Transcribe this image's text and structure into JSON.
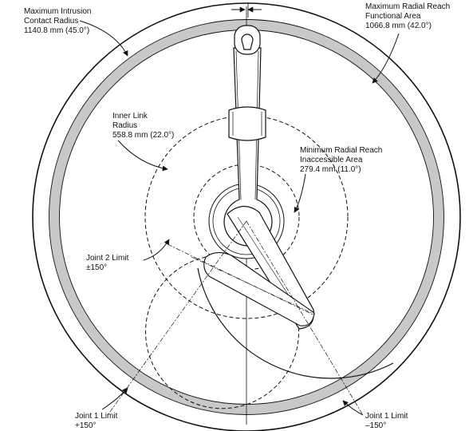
{
  "labels": {
    "max_intrusion": [
      "Maximum Intrusion",
      "Contact Radius",
      "1140.8 mm (45.0°)"
    ],
    "max_radial_reach": [
      "Maximum Radial Reach",
      "Functional Area",
      "1066.8 mm (42.0°)"
    ],
    "inner_link": [
      "Inner Link",
      "Radius",
      "558.8 mm (22.0°)"
    ],
    "min_radial_reach": [
      "Minimum Radial Reach",
      "Inaccessible Area",
      "279.4 mm (11.0°)"
    ],
    "joint2_limit": [
      "Joint 2 Limit",
      "±150°"
    ],
    "joint1_limit_pos": [
      "Joint 1 Limit",
      "+150°"
    ],
    "joint1_limit_neg": [
      "Joint 1 Limit",
      "–150°"
    ]
  },
  "colors": {
    "line": "#111111",
    "band": "#c8c8c8",
    "background": "#ffffff"
  }
}
